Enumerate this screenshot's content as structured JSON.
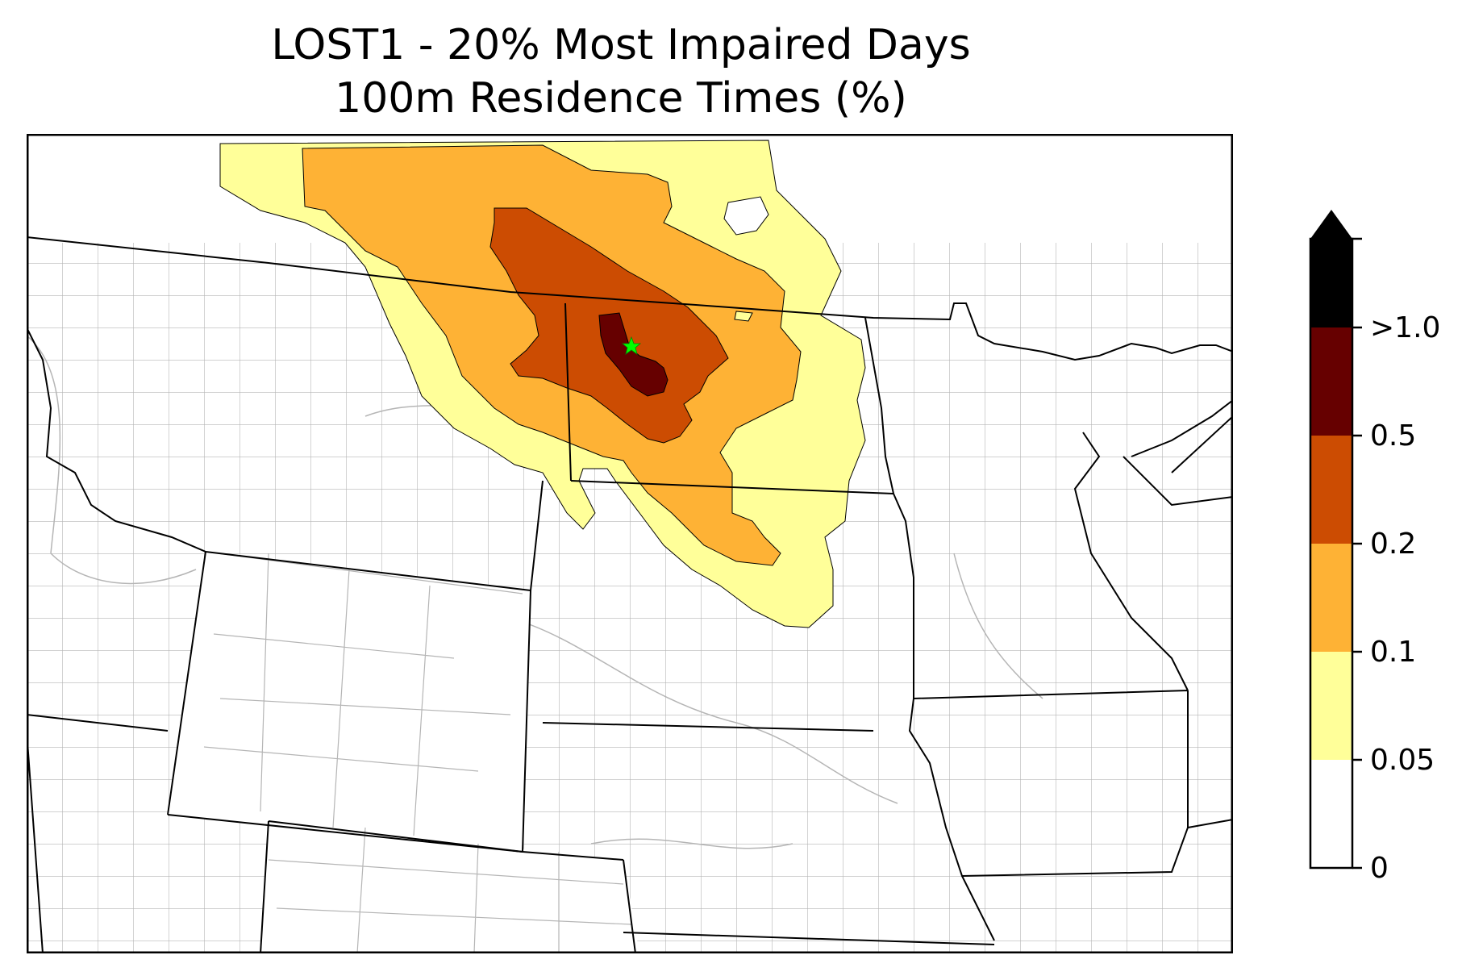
{
  "title": {
    "line1": "LOST1 - 20% Most Impaired Days",
    "line2": "100m Residence Times (%)"
  },
  "colorbar": {
    "levels": [
      {
        "label": "0",
        "color": "#ffffff"
      },
      {
        "label": "0.05",
        "color": "#ffff99"
      },
      {
        "label": "0.1",
        "color": "#feb235"
      },
      {
        "label": "0.2",
        "color": "#cc4c02"
      },
      {
        "label": "0.5",
        "color": "#660000"
      },
      {
        "label": ">1.0",
        "color": "#000000"
      }
    ],
    "extend": "max"
  },
  "colors": {
    "level_005": "#ffff99",
    "level_01": "#feb235",
    "level_02": "#cc4c02",
    "level_05": "#660000",
    "site_marker": "#00ff00",
    "state_lines": "#000000",
    "county_lines": "#aaaaaa"
  },
  "site": {
    "name": "LOST1",
    "marker": "green-star"
  }
}
